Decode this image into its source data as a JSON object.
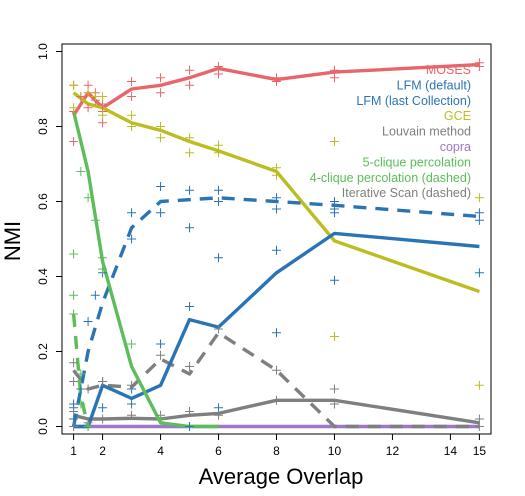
{
  "chart_data": {
    "type": "line",
    "title": "",
    "xlabel": "Average Overlap",
    "ylabel": "NMI",
    "xlim": [
      0.6,
      15.4
    ],
    "ylim": [
      -0.02,
      1.02
    ],
    "x_ticks": [
      1,
      2,
      4,
      6,
      8,
      10,
      12,
      14,
      15
    ],
    "y_ticks": [
      0.0,
      0.2,
      0.4,
      0.6,
      0.8,
      1.0
    ],
    "y_tick_labels": [
      "0.0",
      "0.2",
      "0.4",
      "0.6",
      "0.8",
      "1.0"
    ],
    "grid": false,
    "legend_position": "top-right",
    "series": [
      {
        "name": "MOSES",
        "color": "#e8666a",
        "dash": false,
        "x": [
          1,
          1.5,
          2,
          3,
          4,
          5,
          6,
          8,
          10,
          15
        ],
        "y": [
          0.83,
          0.89,
          0.85,
          0.9,
          0.91,
          0.93,
          0.955,
          0.925,
          0.945,
          0.965
        ],
        "points": [
          [
            1,
            0.76
          ],
          [
            1,
            0.84
          ],
          [
            1,
            0.91
          ],
          [
            1.25,
            0.88
          ],
          [
            1.5,
            0.91
          ],
          [
            1.5,
            0.85
          ],
          [
            1.75,
            0.87
          ],
          [
            1.75,
            0.89
          ],
          [
            2,
            0.81
          ],
          [
            2,
            0.84
          ],
          [
            2,
            0.86
          ],
          [
            3,
            0.88
          ],
          [
            3,
            0.92
          ],
          [
            4,
            0.89
          ],
          [
            4,
            0.93
          ],
          [
            5,
            0.91
          ],
          [
            5,
            0.95
          ],
          [
            6,
            0.94
          ],
          [
            6,
            0.96
          ],
          [
            8,
            0.92
          ],
          [
            8,
            0.93
          ],
          [
            10,
            0.93
          ],
          [
            10,
            0.95
          ],
          [
            15,
            0.96
          ],
          [
            15,
            0.97
          ]
        ]
      },
      {
        "name": "LFM (default)",
        "color": "#2a74b5",
        "dash": false,
        "x": [
          1,
          1.5,
          2,
          3,
          4,
          5,
          6,
          8,
          10,
          15
        ],
        "y": [
          0.0,
          0.0,
          0.11,
          0.075,
          0.11,
          0.285,
          0.265,
          0.41,
          0.515,
          0.48
        ],
        "points": [
          [
            1,
            0.02
          ],
          [
            1,
            0.05
          ],
          [
            1.5,
            0.0
          ],
          [
            2,
            0.05
          ],
          [
            2,
            0.12
          ],
          [
            3,
            0.06
          ],
          [
            3,
            0.1
          ],
          [
            4,
            0.22
          ],
          [
            5,
            0.0
          ],
          [
            5,
            0.32
          ],
          [
            6,
            0.45
          ],
          [
            6,
            0.05
          ],
          [
            8,
            0.25
          ],
          [
            8,
            0.47
          ],
          [
            10,
            0.39
          ],
          [
            10,
            0.58
          ],
          [
            15,
            0.41
          ],
          [
            15,
            0.55
          ]
        ]
      },
      {
        "name": "LFM (last Collection)",
        "color": "#2a74b5",
        "dash": true,
        "x": [
          1,
          1.5,
          2,
          3,
          4,
          6,
          8,
          10,
          15
        ],
        "y": [
          0.0,
          0.2,
          0.33,
          0.53,
          0.6,
          0.61,
          0.6,
          0.59,
          0.56
        ],
        "points": [
          [
            1,
            0.06
          ],
          [
            1.25,
            0.1
          ],
          [
            1.5,
            0.28
          ],
          [
            1.75,
            0.35
          ],
          [
            2,
            0.41
          ],
          [
            3,
            0.5
          ],
          [
            3,
            0.57
          ],
          [
            4,
            0.64
          ],
          [
            4,
            0.57
          ],
          [
            5,
            0.53
          ],
          [
            5,
            0.63
          ],
          [
            6,
            0.6
          ],
          [
            6,
            0.63
          ],
          [
            8,
            0.61
          ],
          [
            8,
            0.58
          ],
          [
            10,
            0.6
          ],
          [
            10,
            0.57
          ],
          [
            15,
            0.57
          ]
        ]
      },
      {
        "name": "GCE",
        "color": "#bcbd22",
        "dash": false,
        "x": [
          1,
          1.5,
          2,
          3,
          4,
          5,
          6,
          8,
          10,
          15
        ],
        "y": [
          0.89,
          0.86,
          0.85,
          0.81,
          0.79,
          0.76,
          0.735,
          0.68,
          0.495,
          0.36
        ],
        "points": [
          [
            1,
            0.91
          ],
          [
            1,
            0.85
          ],
          [
            1.5,
            0.89
          ],
          [
            1.75,
            0.88
          ],
          [
            2,
            0.83
          ],
          [
            2,
            0.88
          ],
          [
            3,
            0.8
          ],
          [
            3,
            0.83
          ],
          [
            4,
            0.77
          ],
          [
            4,
            0.8
          ],
          [
            5,
            0.73
          ],
          [
            5,
            0.77
          ],
          [
            6,
            0.73
          ],
          [
            6,
            0.75
          ],
          [
            8,
            0.67
          ],
          [
            8,
            0.69
          ],
          [
            10,
            0.76
          ],
          [
            10,
            0.24
          ],
          [
            15,
            0.61
          ],
          [
            15,
            0.11
          ]
        ]
      },
      {
        "name": "Louvain method",
        "color": "#7f7f7f",
        "dash": false,
        "x": [
          1,
          1.5,
          2,
          3,
          4,
          5,
          6,
          8,
          10,
          15
        ],
        "y": [
          0.03,
          0.02,
          0.02,
          0.022,
          0.02,
          0.03,
          0.035,
          0.07,
          0.07,
          0.01
        ],
        "points": [
          [
            1,
            0.0
          ],
          [
            1,
            0.04
          ],
          [
            1.5,
            0.01
          ],
          [
            2,
            0.02
          ],
          [
            3,
            0.03
          ],
          [
            4,
            0.03
          ],
          [
            5,
            0.04
          ],
          [
            6,
            0.03
          ],
          [
            8,
            0.07
          ],
          [
            10,
            0.06
          ],
          [
            15,
            0.02
          ]
        ]
      },
      {
        "name": "copra",
        "color": "#9e77c7",
        "dash": false,
        "x": [
          1,
          2,
          4,
          6,
          8,
          10,
          15
        ],
        "y": [
          0.0,
          0.0,
          0.0,
          0.0,
          0.0,
          0.0,
          0.0
        ],
        "points": []
      },
      {
        "name": "5-clique percolation",
        "color": "#5cbd5a",
        "dash": false,
        "x": [
          1,
          1.5,
          2,
          3,
          4,
          5,
          6
        ],
        "y": [
          0.84,
          0.68,
          0.44,
          0.16,
          0.01,
          0.0,
          0.0
        ],
        "points": [
          [
            1,
            0.46
          ],
          [
            1.25,
            0.68
          ],
          [
            1.5,
            0.61
          ],
          [
            1.75,
            0.55
          ],
          [
            2,
            0.45
          ],
          [
            2,
            0.42
          ],
          [
            3,
            0.22
          ],
          [
            4,
            0.02
          ]
        ]
      },
      {
        "name": "4-clique percolation (dashed)",
        "color": "#5cbd5a",
        "dash": true,
        "x": [
          1,
          1.25,
          1.5
        ],
        "y": [
          0.3,
          0.08,
          0.0
        ],
        "points": [
          [
            1,
            0.35
          ],
          [
            1,
            0.3
          ],
          [
            1.25,
            0.14
          ],
          [
            1.25,
            0.06
          ],
          [
            1.5,
            0.0
          ]
        ]
      },
      {
        "name": "Iterative Scan (dashed)",
        "color": "#7f7f7f",
        "dash": true,
        "x": [
          1,
          1.5,
          2,
          3,
          4,
          5,
          6,
          8,
          10,
          15
        ],
        "y": [
          0.15,
          0.1,
          0.11,
          0.105,
          0.18,
          0.14,
          0.25,
          0.15,
          0.0,
          0.0
        ],
        "points": [
          [
            1,
            0.17
          ],
          [
            1,
            0.12
          ],
          [
            1.5,
            0.1
          ],
          [
            2,
            0.12
          ],
          [
            3,
            0.11
          ],
          [
            4,
            0.19
          ],
          [
            5,
            0.16
          ],
          [
            6,
            0.26
          ],
          [
            8,
            0.15
          ],
          [
            10,
            0.1
          ],
          [
            15,
            0.0
          ]
        ]
      }
    ]
  }
}
